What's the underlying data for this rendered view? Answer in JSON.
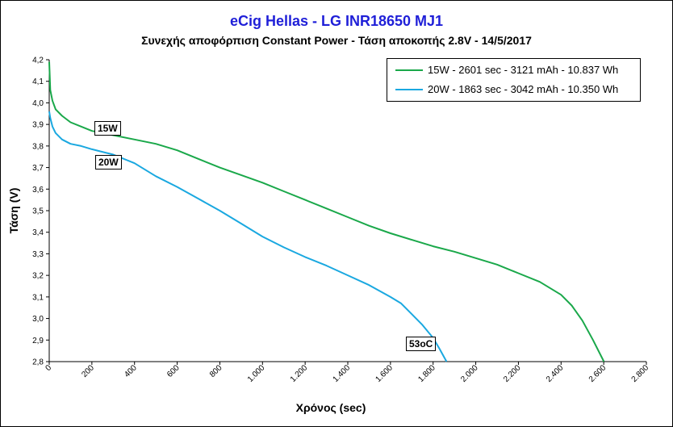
{
  "chart_data": {
    "type": "line",
    "title": "eCig Hellas  - LG INR18650  MJ1",
    "subtitle": "Συνεχής αποφόρπιση Constant Power - Τάση αποκοπής 2.8V - 14/5/2017",
    "xlabel": "Χρόνος (sec)",
    "ylabel": "Τάση (V)",
    "xlim": [
      0,
      2800
    ],
    "ylim": [
      2.8,
      4.2
    ],
    "x_ticks": [
      "0",
      "200",
      "400",
      "600",
      "800",
      "1.000",
      "1.200",
      "1.400",
      "1.600",
      "1.800",
      "2.000",
      "2.200",
      "2.400",
      "2.600",
      "2.800"
    ],
    "y_ticks": [
      "2,8",
      "2,9",
      "3,0",
      "3,1",
      "3,2",
      "3,3",
      "3,4",
      "3,5",
      "3,6",
      "3,7",
      "3,8",
      "3,9",
      "4,0",
      "4,1",
      "4,2"
    ],
    "grid": false,
    "legend_position": "top-right",
    "series": [
      {
        "name": "15W - 2601 sec - 3121 mAh - 10.837 Wh",
        "color": "#1aa84a",
        "x": [
          0,
          5,
          15,
          30,
          60,
          100,
          150,
          200,
          300,
          400,
          500,
          600,
          700,
          800,
          900,
          1000,
          1100,
          1200,
          1300,
          1400,
          1500,
          1600,
          1700,
          1800,
          1900,
          2000,
          2100,
          2200,
          2300,
          2400,
          2450,
          2500,
          2550,
          2601
        ],
        "y": [
          4.19,
          4.06,
          4.01,
          3.97,
          3.94,
          3.91,
          3.89,
          3.87,
          3.85,
          3.83,
          3.81,
          3.78,
          3.74,
          3.7,
          3.665,
          3.63,
          3.59,
          3.55,
          3.51,
          3.47,
          3.43,
          3.395,
          3.365,
          3.335,
          3.31,
          3.28,
          3.25,
          3.21,
          3.17,
          3.11,
          3.06,
          2.99,
          2.9,
          2.8
        ]
      },
      {
        "name": "20W - 1863 sec - 3042 mAh - 10.350 Wh",
        "color": "#1aa8e0",
        "x": [
          0,
          5,
          15,
          30,
          60,
          100,
          150,
          200,
          300,
          400,
          500,
          600,
          700,
          800,
          900,
          1000,
          1100,
          1200,
          1300,
          1400,
          1500,
          1600,
          1650,
          1700,
          1750,
          1800,
          1830,
          1863
        ],
        "y": [
          3.96,
          3.93,
          3.89,
          3.86,
          3.83,
          3.81,
          3.8,
          3.785,
          3.76,
          3.72,
          3.66,
          3.61,
          3.555,
          3.5,
          3.44,
          3.38,
          3.33,
          3.285,
          3.245,
          3.2,
          3.155,
          3.1,
          3.07,
          3.02,
          2.97,
          2.91,
          2.86,
          2.8
        ]
      }
    ],
    "annotations": [
      "15W",
      "20W",
      "53oC"
    ]
  }
}
